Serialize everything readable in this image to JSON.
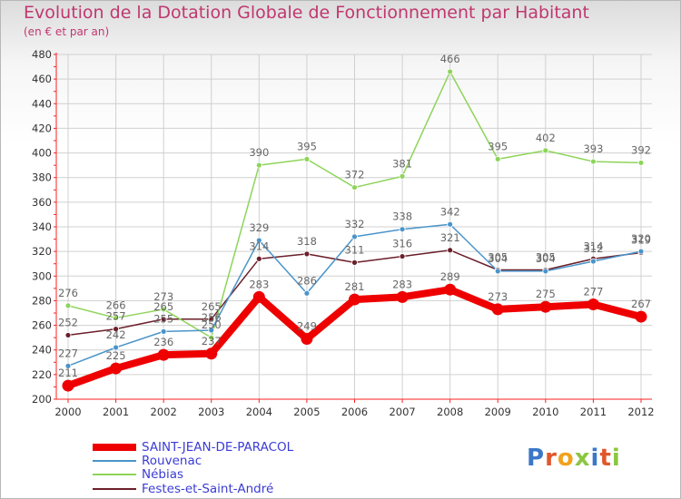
{
  "title": "Evolution de la Dotation Globale de Fonctionnement par Habitant",
  "subtitle": "(en € et par an)",
  "colors": {
    "title": "#c0376f",
    "axis": "#ff2020",
    "grid": "#d0d0d0",
    "legend_text": "#3b3bd6",
    "data_label": "#666666"
  },
  "logo": {
    "letters": [
      "P",
      "r",
      "o",
      "x",
      "i",
      "t",
      "i"
    ],
    "letter_colors": [
      "#3a77c8",
      "#e0572b",
      "#f0a21d",
      "#8cc640",
      "#3a77c8",
      "#e0572b",
      "#8cc640"
    ]
  },
  "chart_data": {
    "type": "line",
    "title": "Evolution de la Dotation Globale de Fonctionnement par Habitant",
    "subtitle": "(en € et par an)",
    "xlabel": "",
    "ylabel": "",
    "x": [
      "2000",
      "2001",
      "2002",
      "2003",
      "2004",
      "2005",
      "2006",
      "2007",
      "2008",
      "2009",
      "2010",
      "2011",
      "2012"
    ],
    "ylim": [
      200,
      480
    ],
    "yticks": [
      "200",
      "220",
      "240",
      "260",
      "280",
      "300",
      "320",
      "340",
      "360",
      "380",
      "400",
      "420",
      "440",
      "460",
      "480"
    ],
    "grid": true,
    "legend_position": "bottom-left",
    "series": [
      {
        "name": "Festes-et-Saint-André",
        "color": "#6b1f2a",
        "values": [
          252,
          257,
          265,
          265,
          314,
          318,
          311,
          316,
          321,
          305,
          305,
          314,
          319
        ],
        "labels": [
          "252",
          "257",
          "265",
          "265",
          "314",
          "318",
          "311",
          "316",
          "321",
          "305",
          "305",
          "314",
          "319"
        ]
      },
      {
        "name": "Nébias",
        "color": "#8ed45a",
        "values": [
          276,
          266,
          273,
          250,
          390,
          395,
          372,
          381,
          466,
          395,
          402,
          393,
          392
        ],
        "labels": [
          "276",
          "266",
          "273",
          "250",
          "390",
          "395",
          "372",
          "381",
          "466",
          "395",
          "402",
          "393",
          "392"
        ]
      },
      {
        "name": "Rouvenac",
        "color": "#4a94c9",
        "values": [
          227,
          242,
          255,
          256,
          329,
          286,
          332,
          338,
          342,
          304,
          304,
          312,
          320
        ],
        "labels": [
          "227",
          "242",
          "255",
          "256",
          "329",
          "286",
          "332",
          "338",
          "342",
          "304",
          "304",
          "312",
          "320"
        ]
      },
      {
        "name": "SAINT-JEAN-DE-PARACOL",
        "color": "#ee0000",
        "values": [
          211,
          225,
          236,
          237,
          283,
          249,
          281,
          283,
          289,
          273,
          275,
          277,
          267
        ],
        "labels": [
          "211",
          "225",
          "236",
          "237",
          "283",
          "249",
          "281",
          "283",
          "289",
          "273",
          "275",
          "277",
          "267"
        ]
      }
    ]
  },
  "legend": [
    {
      "label": "SAINT-JEAN-DE-PARACOL",
      "color": "#ee0000"
    },
    {
      "label": "Rouvenac",
      "color": "#4a94c9"
    },
    {
      "label": "Nébias",
      "color": "#8ed45a"
    },
    {
      "label": "Festes-et-Saint-André",
      "color": "#6b1f2a"
    }
  ]
}
